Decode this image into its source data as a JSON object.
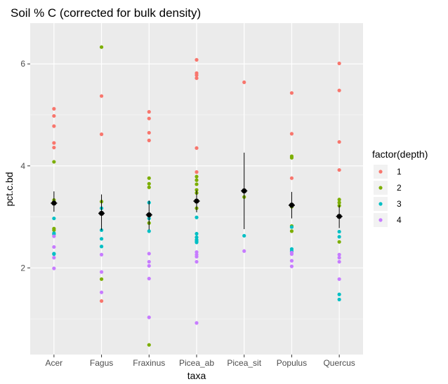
{
  "chart_data": {
    "type": "scatter",
    "title": "Soil % C (corrected for bulk density)",
    "xlabel": "taxa",
    "ylabel": "pct.c.bd",
    "categories": [
      "Acer",
      "Fagus",
      "Fraxinus",
      "Picea_ab",
      "Picea_sit",
      "Populus",
      "Quercus"
    ],
    "yticks": [
      2,
      4,
      6
    ],
    "ylim": [
      0.3,
      6.8
    ],
    "grid": true,
    "legend": {
      "title": "factor(depth)",
      "position": "right",
      "entries": [
        {
          "label": "1",
          "color": "#F8766D"
        },
        {
          "label": "2",
          "color": "#7CAE00"
        },
        {
          "label": "3",
          "color": "#00BFC4"
        },
        {
          "label": "4",
          "color": "#C77CFF"
        }
      ]
    },
    "series": [
      {
        "name": "1",
        "color": "#F8766D",
        "points": [
          [
            "Acer",
            5.12
          ],
          [
            "Acer",
            4.98
          ],
          [
            "Acer",
            4.78
          ],
          [
            "Acer",
            4.45
          ],
          [
            "Acer",
            4.36
          ],
          [
            "Fagus",
            5.37
          ],
          [
            "Fagus",
            4.62
          ],
          [
            "Fagus",
            1.35
          ],
          [
            "Fraxinus",
            5.06
          ],
          [
            "Fraxinus",
            4.93
          ],
          [
            "Fraxinus",
            4.65
          ],
          [
            "Fraxinus",
            4.5
          ],
          [
            "Picea_ab",
            6.08
          ],
          [
            "Picea_ab",
            5.82
          ],
          [
            "Picea_ab",
            5.78
          ],
          [
            "Picea_ab",
            5.72
          ],
          [
            "Picea_ab",
            4.35
          ],
          [
            "Picea_ab",
            3.88
          ],
          [
            "Picea_sit",
            5.64
          ],
          [
            "Populus",
            5.43
          ],
          [
            "Populus",
            4.63
          ],
          [
            "Populus",
            3.76
          ],
          [
            "Quercus",
            6.01
          ],
          [
            "Quercus",
            5.48
          ],
          [
            "Quercus",
            4.47
          ],
          [
            "Quercus",
            3.92
          ]
        ]
      },
      {
        "name": "2",
        "color": "#7CAE00",
        "points": [
          [
            "Acer",
            4.08
          ],
          [
            "Acer",
            3.33
          ],
          [
            "Acer",
            2.77
          ],
          [
            "Acer",
            2.74
          ],
          [
            "Fagus",
            6.33
          ],
          [
            "Fagus",
            3.3
          ],
          [
            "Fagus",
            1.78
          ],
          [
            "Fraxinus",
            3.76
          ],
          [
            "Fraxinus",
            3.65
          ],
          [
            "Fraxinus",
            3.58
          ],
          [
            "Fraxinus",
            2.88
          ],
          [
            "Fraxinus",
            0.49
          ],
          [
            "Picea_ab",
            3.79
          ],
          [
            "Picea_ab",
            3.72
          ],
          [
            "Picea_ab",
            3.64
          ],
          [
            "Picea_ab",
            3.53
          ],
          [
            "Picea_ab",
            3.47
          ],
          [
            "Picea_ab",
            3.17
          ],
          [
            "Picea_sit",
            3.39
          ],
          [
            "Populus",
            4.19
          ],
          [
            "Populus",
            4.16
          ],
          [
            "Populus",
            3.2
          ],
          [
            "Populus",
            2.82
          ],
          [
            "Populus",
            2.72
          ],
          [
            "Quercus",
            3.34
          ],
          [
            "Quercus",
            3.28
          ],
          [
            "Quercus",
            3.22
          ],
          [
            "Quercus",
            2.51
          ]
        ]
      },
      {
        "name": "3",
        "color": "#00BFC4",
        "points": [
          [
            "Acer",
            2.97
          ],
          [
            "Acer",
            2.68
          ],
          [
            "Acer",
            2.66
          ],
          [
            "Acer",
            2.28
          ],
          [
            "Acer",
            2.27
          ],
          [
            "Fagus",
            3.17
          ],
          [
            "Fagus",
            2.74
          ],
          [
            "Fagus",
            2.57
          ],
          [
            "Fagus",
            2.42
          ],
          [
            "Fraxinus",
            3.28
          ],
          [
            "Fraxinus",
            2.97
          ],
          [
            "Fraxinus",
            2.72
          ],
          [
            "Picea_ab",
            2.99
          ],
          [
            "Picea_ab",
            2.67
          ],
          [
            "Picea_ab",
            2.6
          ],
          [
            "Picea_ab",
            2.55
          ],
          [
            "Picea_ab",
            2.52
          ],
          [
            "Picea_ab",
            2.5
          ],
          [
            "Picea_sit",
            2.63
          ],
          [
            "Populus",
            2.8
          ],
          [
            "Populus",
            2.37
          ],
          [
            "Populus",
            2.33
          ],
          [
            "Quercus",
            2.71
          ],
          [
            "Quercus",
            2.61
          ],
          [
            "Quercus",
            1.48
          ],
          [
            "Quercus",
            1.38
          ]
        ]
      },
      {
        "name": "4",
        "color": "#C77CFF",
        "points": [
          [
            "Acer",
            2.62
          ],
          [
            "Acer",
            2.41
          ],
          [
            "Acer",
            2.2
          ],
          [
            "Acer",
            1.99
          ],
          [
            "Fagus",
            2.26
          ],
          [
            "Fagus",
            1.92
          ],
          [
            "Fagus",
            1.52
          ],
          [
            "Fraxinus",
            2.28
          ],
          [
            "Fraxinus",
            2.12
          ],
          [
            "Fraxinus",
            2.04
          ],
          [
            "Fraxinus",
            1.79
          ],
          [
            "Fraxinus",
            1.03
          ],
          [
            "Picea_ab",
            2.31
          ],
          [
            "Picea_ab",
            2.26
          ],
          [
            "Picea_ab",
            2.22
          ],
          [
            "Picea_ab",
            2.12
          ],
          [
            "Picea_ab",
            0.92
          ],
          [
            "Picea_sit",
            2.33
          ],
          [
            "Populus",
            2.3
          ],
          [
            "Populus",
            2.27
          ],
          [
            "Populus",
            2.14
          ],
          [
            "Populus",
            2.03
          ],
          [
            "Quercus",
            2.26
          ],
          [
            "Quercus",
            2.2
          ],
          [
            "Quercus",
            2.12
          ],
          [
            "Quercus",
            1.78
          ]
        ]
      }
    ],
    "summary": [
      {
        "taxa": "Acer",
        "mean": 3.27,
        "low": 3.1,
        "high": 3.5
      },
      {
        "taxa": "Fagus",
        "mean": 3.07,
        "low": 2.74,
        "high": 3.44
      },
      {
        "taxa": "Fraxinus",
        "mean": 3.04,
        "low": 2.75,
        "high": 3.32
      },
      {
        "taxa": "Picea_ab",
        "mean": 3.31,
        "low": 3.09,
        "high": 3.52
      },
      {
        "taxa": "Picea_sit",
        "mean": 3.51,
        "low": 2.76,
        "high": 4.26
      },
      {
        "taxa": "Populus",
        "mean": 3.23,
        "low": 2.97,
        "high": 3.49
      },
      {
        "taxa": "Quercus",
        "mean": 3.01,
        "low": 2.78,
        "high": 3.23
      }
    ]
  }
}
